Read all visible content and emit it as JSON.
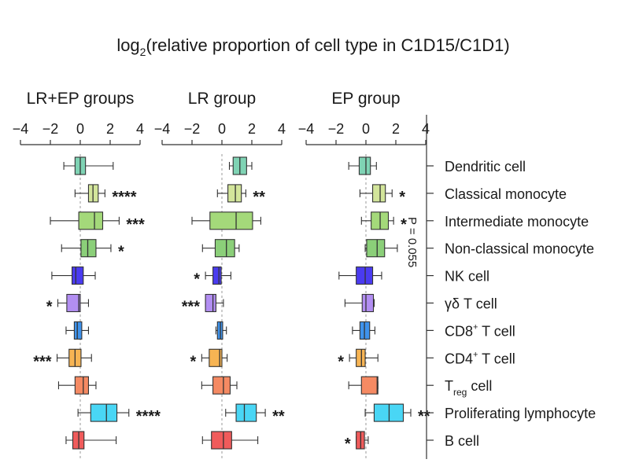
{
  "chart_data": {
    "type": "boxplot",
    "title_main": "log",
    "title_sub": "2",
    "title_rest": "(relative proportion of cell type in C1D15/C1D1)",
    "xlim": [
      -4,
      4
    ],
    "xticks": [
      -4,
      -2,
      0,
      2,
      4
    ],
    "xtick_labels": [
      "−4",
      "−2",
      "0",
      "2",
      "4"
    ],
    "categories": [
      {
        "text": "Dendritic cell"
      },
      {
        "text": "Classical monocyte"
      },
      {
        "text": "Intermediate monocyte"
      },
      {
        "text": "Non-classical monocyte"
      },
      {
        "text": "NK cell"
      },
      {
        "text": "γδ T cell"
      },
      {
        "text": "CD8",
        "sup": "+",
        "rest": " T cell"
      },
      {
        "text": "CD4",
        "sup": "+",
        "rest": " T cell"
      },
      {
        "text": "T",
        "sub": "reg",
        "rest": " cell"
      },
      {
        "text": "Proliferating lymphocyte"
      },
      {
        "text": "B cell"
      }
    ],
    "colors": [
      "#7fd3b4",
      "#d3e59b",
      "#a4d97a",
      "#8bcf79",
      "#4a3bf0",
      "#b28ef2",
      "#3f93ec",
      "#f7b453",
      "#f58a63",
      "#49d6f5",
      "#f05b5b"
    ],
    "panels": [
      {
        "title": "LR+EP groups",
        "boxes": [
          {
            "wmin": -1.1,
            "q1": -0.35,
            "median": 0.0,
            "q3": 0.35,
            "wmax": 2.2
          },
          {
            "wmin": -0.35,
            "q1": 0.55,
            "median": 0.85,
            "q3": 1.2,
            "wmax": 1.65
          },
          {
            "wmin": -2.0,
            "q1": -0.1,
            "median": 0.95,
            "q3": 1.5,
            "wmax": 2.6
          },
          {
            "wmin": -1.25,
            "q1": 0.05,
            "median": 0.5,
            "q3": 1.05,
            "wmax": 2.05
          },
          {
            "wmin": -1.9,
            "q1": -0.55,
            "median": -0.3,
            "q3": 0.2,
            "wmax": 1.0
          },
          {
            "wmin": -1.5,
            "q1": -0.9,
            "median": -0.1,
            "q3": 0.0,
            "wmax": 0.55
          },
          {
            "wmax": 0.55,
            "wmin": -0.95,
            "q1": -0.4,
            "median": -0.2,
            "q3": 0.1
          },
          {
            "wmin": -1.55,
            "q1": -0.75,
            "median": -0.35,
            "q3": 0.05,
            "wmax": 0.75
          },
          {
            "wmin": -1.45,
            "q1": -0.35,
            "median": 0.2,
            "q3": 0.55,
            "wmax": 1.05
          },
          {
            "wmin": -0.15,
            "q1": 0.7,
            "median": 1.75,
            "q3": 2.45,
            "wmax": 3.25
          },
          {
            "wmin": -0.95,
            "q1": -0.5,
            "median": -0.1,
            "q3": 0.25,
            "wmax": 2.4
          }
        ],
        "stars": [
          "",
          "****",
          "***",
          "*",
          "",
          "*",
          "",
          "***",
          "",
          "****",
          ""
        ]
      },
      {
        "title": "LR group",
        "boxes": [
          {
            "wmin": 0.5,
            "q1": 0.75,
            "median": 1.2,
            "q3": 1.65,
            "wmax": 2.0
          },
          {
            "wmin": -0.3,
            "q1": 0.4,
            "median": 0.9,
            "q3": 1.3,
            "wmax": 1.6
          },
          {
            "wmin": -2.0,
            "q1": -0.8,
            "median": 0.95,
            "q3": 2.05,
            "wmax": 2.6
          },
          {
            "wmin": -1.3,
            "q1": -0.45,
            "median": 0.3,
            "q3": 0.85,
            "wmax": 1.15
          },
          {
            "wmin": -1.1,
            "q1": -0.6,
            "median": -0.2,
            "q3": -0.05,
            "wmax": 0.6
          },
          {
            "wmin": -1.1,
            "q1": -1.1,
            "median": -0.6,
            "q3": -0.4,
            "wmax": 0.1
          },
          {
            "wmax": 0.3,
            "wmin": -0.4,
            "q1": -0.3,
            "median": -0.1,
            "q3": 0.05
          },
          {
            "wmin": -1.35,
            "q1": -0.85,
            "median": -0.15,
            "q3": 0.0,
            "wmax": 0.35
          },
          {
            "wmin": -1.35,
            "q1": -0.6,
            "median": 0.1,
            "q3": 0.55,
            "wmax": 1.0
          },
          {
            "wmin": 0.25,
            "q1": 0.95,
            "median": 1.5,
            "q3": 2.3,
            "wmax": 2.9
          },
          {
            "wmin": -1.3,
            "q1": -0.7,
            "median": 0.1,
            "q3": 0.65,
            "wmax": 2.4
          }
        ],
        "stars": [
          "",
          "**",
          "",
          "",
          "*",
          "***",
          "",
          "*",
          "",
          "**",
          ""
        ]
      },
      {
        "title": "EP group",
        "boxes": [
          {
            "wmin": -1.15,
            "q1": -0.45,
            "median": 0.0,
            "q3": 0.3,
            "wmax": 0.7
          },
          {
            "wmin": -0.4,
            "q1": 0.45,
            "median": 0.95,
            "q3": 1.3,
            "wmax": 1.75
          },
          {
            "wmin": -0.3,
            "q1": 0.35,
            "median": 0.95,
            "q3": 1.5,
            "wmax": 1.85
          },
          {
            "wmin": -0.05,
            "q1": 0.05,
            "median": 0.75,
            "q3": 1.25,
            "wmax": 2.1
          },
          {
            "wmin": -1.8,
            "q1": -0.65,
            "median": -0.05,
            "q3": 0.45,
            "wmax": 1.05
          },
          {
            "wmin": -1.4,
            "q1": -0.25,
            "median": 0.0,
            "q3": 0.5,
            "wmax": 0.55
          },
          {
            "wmax": 0.6,
            "wmin": -0.9,
            "q1": -0.4,
            "median": -0.1,
            "q3": 0.25
          },
          {
            "wmin": -1.1,
            "q1": -0.65,
            "median": -0.3,
            "q3": -0.05,
            "wmax": 0.8
          },
          {
            "wmin": -1.15,
            "q1": -0.3,
            "median": 0.75,
            "q3": 0.8,
            "wmax": 0.8
          },
          {
            "wmin": -0.05,
            "q1": 0.55,
            "median": 1.55,
            "q3": 2.5,
            "wmax": 3.0
          },
          {
            "wmin": -0.65,
            "q1": -0.65,
            "median": -0.35,
            "q3": -0.1,
            "wmax": 0.15
          }
        ],
        "stars": [
          "",
          "*",
          "*",
          "",
          "",
          "",
          "",
          "*",
          "",
          "**",
          "*"
        ]
      }
    ],
    "p_value_note": "P = 0.055"
  }
}
